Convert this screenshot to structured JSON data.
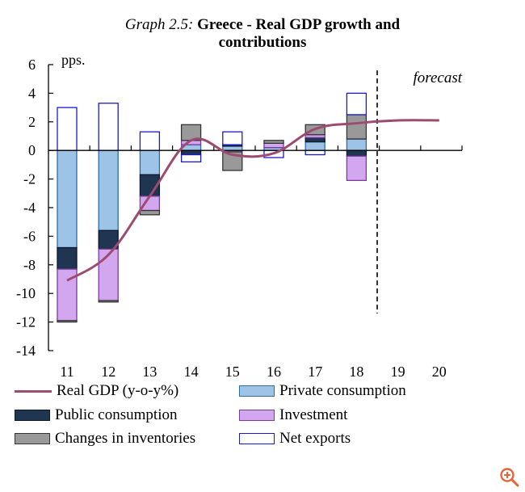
{
  "chart_data": {
    "type": "bar",
    "title_prefix": "Graph 2.5:",
    "title_main": "Greece - Real GDP growth and",
    "title_line2": "contributions",
    "ylabel": "pps.",
    "annotation": "forecast",
    "ylim": [
      -14,
      6
    ],
    "yticks": [
      6,
      4,
      2,
      0,
      -2,
      -4,
      -6,
      -8,
      -10,
      -12,
      -14
    ],
    "categories": [
      "11",
      "12",
      "13",
      "14",
      "15",
      "16",
      "17",
      "18",
      "19",
      "20"
    ],
    "forecast_after_category": "18",
    "stacked_series": [
      {
        "name": "Private consumption",
        "color": "#9dc3e6",
        "border": "#2e6da4",
        "values": [
          -6.8,
          -5.6,
          -1.7,
          0.4,
          0.3,
          0.2,
          0.6,
          0.8,
          null,
          null
        ]
      },
      {
        "name": "Public consumption",
        "color": "#1f3552",
        "border": "#0c1a2c",
        "values": [
          -1.5,
          -1.3,
          -1.5,
          -0.3,
          0.1,
          0.0,
          0.3,
          -0.4,
          null,
          null
        ]
      },
      {
        "name": "Investment",
        "color": "#d3a6f0",
        "border": "#7a3d9a",
        "values": [
          -3.6,
          -3.6,
          -1.0,
          0.3,
          -0.1,
          0.3,
          0.2,
          -1.7,
          null,
          null
        ]
      },
      {
        "name": "Changes in inventories",
        "color": "#999999",
        "border": "#333333",
        "values": [
          -0.1,
          -0.1,
          -0.3,
          1.1,
          -1.3,
          0.2,
          0.7,
          1.7,
          null,
          null
        ]
      },
      {
        "name": "Net exports",
        "color": "#ffffff",
        "border": "#1a1acd",
        "values": [
          3.0,
          3.3,
          1.3,
          -0.5,
          0.9,
          -0.5,
          -0.3,
          1.5,
          null,
          null
        ]
      }
    ],
    "line_series": {
      "name": "Real GDP (y-o-y%)",
      "color": "#9e4b70",
      "values": [
        -9.1,
        -7.3,
        -3.2,
        0.7,
        -0.3,
        -0.2,
        1.5,
        1.9,
        2.1,
        2.1
      ]
    },
    "legend_order": [
      "Real GDP (y-o-y%)",
      "Private consumption",
      "Public consumption",
      "Investment",
      "Changes in inventories",
      "Net exports"
    ]
  },
  "ui": {
    "zoom_icon": "zoom-in-icon",
    "zoom_color": "#e8643c"
  }
}
